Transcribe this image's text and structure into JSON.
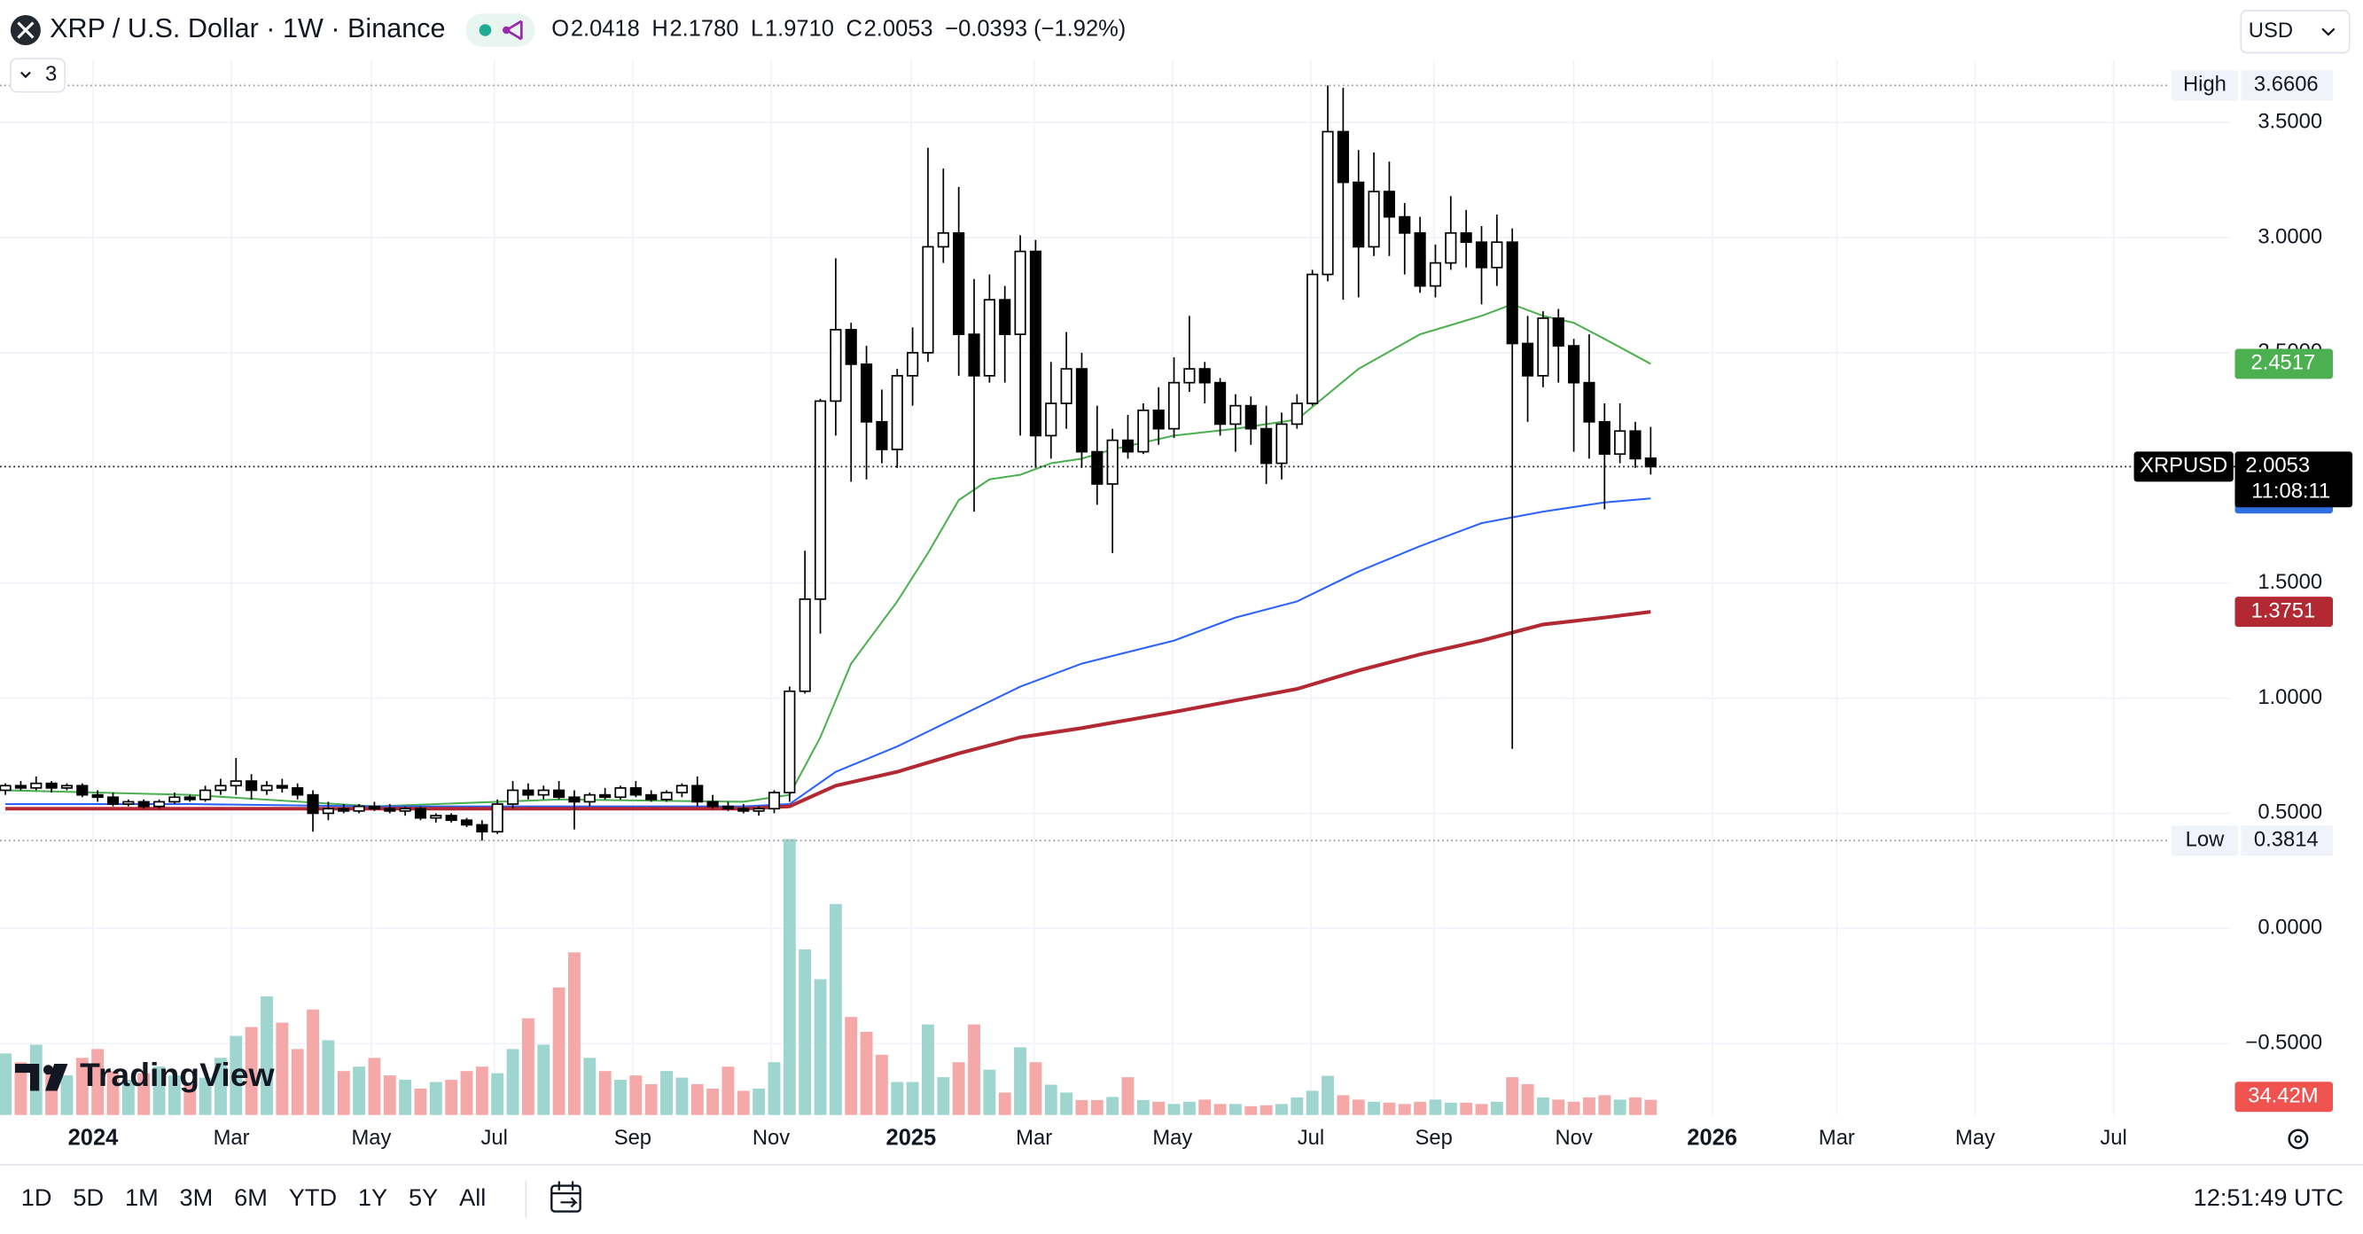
{
  "header": {
    "symbol": "XRP / U.S. Dollar · 1W · Binance",
    "ohlc": [
      {
        "key": "O",
        "value": "2.0418"
      },
      {
        "key": "H",
        "value": "2.1780"
      },
      {
        "key": "L",
        "value": "1.9710"
      },
      {
        "key": "C",
        "value": "2.0053"
      }
    ],
    "change": "−0.0393 (−1.92%)",
    "currency": "USD",
    "indicator_count": 3
  },
  "chart_data": {
    "type": "candlestick",
    "up_color": "#ffffff",
    "down_color": "#000000",
    "volume_up_color": "#9fd5cf",
    "volume_down_color": "#f4a9a8",
    "xlim": [
      -0.35,
      144.7
    ],
    "ylim": [
      -0.81,
      3.77
    ],
    "volume_lim": [
      0,
      2400
    ],
    "grid": true,
    "xticks": [
      {
        "value": 5.7,
        "label": "2024"
      },
      {
        "value": 14.7,
        "label": "Mar"
      },
      {
        "value": 23.8,
        "label": "May"
      },
      {
        "value": 31.8,
        "label": "Jul"
      },
      {
        "value": 40.8,
        "label": "Sep"
      },
      {
        "value": 49.8,
        "label": "Nov"
      },
      {
        "value": 58.9,
        "label": "2025"
      },
      {
        "value": 66.9,
        "label": "Mar"
      },
      {
        "value": 75.9,
        "label": "May"
      },
      {
        "value": 84.9,
        "label": "Jul"
      },
      {
        "value": 92.9,
        "label": "Sep"
      },
      {
        "value": 102,
        "label": "Nov"
      },
      {
        "value": 111,
        "label": "2026"
      },
      {
        "value": 119.1,
        "label": "Mar"
      },
      {
        "value": 128.1,
        "label": "May"
      },
      {
        "value": 137.1,
        "label": "Jul"
      }
    ],
    "yticks": [
      {
        "value": 3.5,
        "label": "3.5000"
      },
      {
        "value": 3,
        "label": "3.0000"
      },
      {
        "value": 2.5,
        "label": "2.5000"
      },
      {
        "value": 1.5,
        "label": "1.5000"
      },
      {
        "value": 1,
        "label": "1.0000"
      },
      {
        "value": 0.5,
        "label": "0.5000"
      },
      {
        "value": 0,
        "label": "0.0000"
      },
      {
        "value": -0.5,
        "label": "−0.5000"
      }
    ],
    "open": [
      0.6,
      0.62,
      0.61,
      0.63,
      0.61,
      0.62,
      0.58,
      0.57,
      0.54,
      0.55,
      0.53,
      0.55,
      0.57,
      0.56,
      0.6,
      0.62,
      0.64,
      0.6,
      0.62,
      0.61,
      0.58,
      0.5,
      0.52,
      0.51,
      0.53,
      0.52,
      0.51,
      0.52,
      0.48,
      0.49,
      0.47,
      0.45,
      0.42,
      0.54,
      0.6,
      0.58,
      0.6,
      0.57,
      0.55,
      0.58,
      0.57,
      0.61,
      0.58,
      0.56,
      0.59,
      0.62,
      0.55,
      0.53,
      0.52,
      0.51,
      0.52,
      0.59,
      1.03,
      1.43,
      2.29,
      2.6,
      2.45,
      2.2,
      2.08,
      2.4,
      2.5,
      2.96,
      3.02,
      2.58,
      2.4,
      2.73,
      2.58,
      2.94,
      2.14,
      2.28,
      2.43,
      2.07,
      1.93,
      2.12,
      2.07,
      2.25,
      2.17,
      2.37,
      2.43,
      2.37,
      2.19,
      2.27,
      2.17,
      2.02,
      2.19,
      2.28,
      2.84,
      3.46,
      3.24,
      2.96,
      3.2,
      3.09,
      3.02,
      2.79,
      2.89,
      3.02,
      2.98,
      2.87,
      2.98,
      2.54,
      2.4,
      2.65,
      2.53,
      2.37,
      2.2,
      2.06,
      2.16,
      2.0418
    ],
    "high": [
      0.63,
      0.64,
      0.66,
      0.64,
      0.63,
      0.63,
      0.6,
      0.59,
      0.56,
      0.56,
      0.56,
      0.59,
      0.58,
      0.62,
      0.65,
      0.74,
      0.67,
      0.64,
      0.65,
      0.63,
      0.6,
      0.55,
      0.54,
      0.54,
      0.55,
      0.54,
      0.53,
      0.53,
      0.5,
      0.5,
      0.48,
      0.47,
      0.56,
      0.64,
      0.63,
      0.62,
      0.64,
      0.6,
      0.59,
      0.61,
      0.62,
      0.64,
      0.6,
      0.6,
      0.63,
      0.66,
      0.58,
      0.55,
      0.54,
      0.53,
      0.6,
      1.05,
      1.64,
      2.3,
      2.91,
      2.63,
      2.53,
      2.34,
      2.43,
      2.61,
      3.39,
      3.3,
      3.22,
      2.82,
      2.84,
      2.79,
      3.01,
      2.99,
      2.46,
      2.59,
      2.5,
      2.27,
      2.17,
      2.23,
      2.28,
      2.35,
      2.48,
      2.66,
      2.46,
      2.39,
      2.32,
      2.31,
      2.27,
      2.24,
      2.32,
      2.86,
      3.6606,
      3.65,
      3.38,
      3.37,
      3.33,
      3.15,
      3.09,
      2.97,
      3.18,
      3.12,
      3.05,
      3.1,
      3.04,
      2.66,
      2.68,
      2.69,
      2.56,
      2.58,
      2.28,
      2.28,
      2.2,
      2.178
    ],
    "low": [
      0.58,
      0.6,
      0.6,
      0.59,
      0.6,
      0.57,
      0.55,
      0.53,
      0.53,
      0.52,
      0.52,
      0.54,
      0.55,
      0.55,
      0.58,
      0.58,
      0.56,
      0.58,
      0.59,
      0.56,
      0.42,
      0.47,
      0.5,
      0.5,
      0.51,
      0.5,
      0.49,
      0.47,
      0.46,
      0.46,
      0.44,
      0.3814,
      0.41,
      0.52,
      0.56,
      0.56,
      0.56,
      0.43,
      0.53,
      0.56,
      0.56,
      0.57,
      0.55,
      0.55,
      0.57,
      0.53,
      0.52,
      0.51,
      0.5,
      0.49,
      0.5,
      0.55,
      1.02,
      1.28,
      2.14,
      1.94,
      1.95,
      2.02,
      2.0,
      2.27,
      2.46,
      2.89,
      2.4,
      1.81,
      2.37,
      2.37,
      2.14,
      2.0,
      2.04,
      2.17,
      2.0,
      1.84,
      1.63,
      2.04,
      2.06,
      2.1,
      2.13,
      2.33,
      2.28,
      2.14,
      2.07,
      2.1,
      1.93,
      1.95,
      2.17,
      2.27,
      2.81,
      2.73,
      2.74,
      2.92,
      2.92,
      2.84,
      2.76,
      2.74,
      2.86,
      2.87,
      2.71,
      2.79,
      0.78,
      2.2,
      2.35,
      2.37,
      2.07,
      2.04,
      1.82,
      2.02,
      2.0,
      1.971
    ],
    "close": [
      0.62,
      0.61,
      0.63,
      0.61,
      0.62,
      0.58,
      0.57,
      0.54,
      0.55,
      0.53,
      0.55,
      0.57,
      0.56,
      0.6,
      0.62,
      0.64,
      0.6,
      0.62,
      0.61,
      0.58,
      0.5,
      0.52,
      0.51,
      0.53,
      0.52,
      0.51,
      0.52,
      0.48,
      0.49,
      0.47,
      0.45,
      0.42,
      0.54,
      0.6,
      0.58,
      0.6,
      0.57,
      0.55,
      0.58,
      0.57,
      0.61,
      0.58,
      0.56,
      0.59,
      0.62,
      0.55,
      0.53,
      0.52,
      0.51,
      0.52,
      0.59,
      1.03,
      1.43,
      2.29,
      2.6,
      2.45,
      2.2,
      2.08,
      2.4,
      2.5,
      2.96,
      3.02,
      2.58,
      2.4,
      2.73,
      2.58,
      2.94,
      2.14,
      2.28,
      2.43,
      2.07,
      1.93,
      2.12,
      2.07,
      2.25,
      2.17,
      2.37,
      2.43,
      2.37,
      2.19,
      2.27,
      2.17,
      2.02,
      2.19,
      2.28,
      2.84,
      3.46,
      3.24,
      2.96,
      3.2,
      3.09,
      3.02,
      2.79,
      2.89,
      3.02,
      2.98,
      2.87,
      2.98,
      2.54,
      2.4,
      2.65,
      2.53,
      2.37,
      2.2,
      2.06,
      2.16,
      2.04,
      2.0053
    ],
    "volume": [
      140,
      120,
      160,
      110,
      90,
      130,
      150,
      100,
      80,
      95,
      110,
      90,
      70,
      85,
      130,
      180,
      200,
      270,
      210,
      150,
      240,
      170,
      100,
      110,
      130,
      90,
      80,
      60,
      75,
      80,
      100,
      110,
      95,
      150,
      220,
      160,
      290,
      370,
      130,
      100,
      80,
      90,
      70,
      100,
      85,
      70,
      60,
      110,
      55,
      60,
      120,
      628,
      377,
      309,
      480,
      223,
      189,
      137,
      75,
      75,
      206,
      86,
      120,
      206,
      103,
      51,
      154,
      120,
      69,
      51,
      34,
      34,
      41,
      86,
      34,
      30,
      25,
      30,
      35,
      25,
      25,
      20,
      22,
      25,
      40,
      55,
      89,
      45,
      35,
      30,
      28,
      25,
      30,
      35,
      28,
      28,
      25,
      30,
      86,
      70,
      40,
      35,
      30,
      40,
      45,
      35,
      40,
      34.42
    ],
    "volume_last_label": "34.42M",
    "series": [
      {
        "color": "#4caf50",
        "width": 1.2,
        "x": [
          0,
          12,
          24,
          36,
          48,
          51,
          53,
          55,
          58,
          60,
          62,
          64,
          66,
          68,
          70,
          72,
          76,
          80,
          84,
          86,
          88,
          92,
          96,
          98,
          100,
          102,
          104,
          107
        ],
        "values": [
          0.6,
          0.58,
          0.53,
          0.56,
          0.55,
          0.58,
          0.83,
          1.15,
          1.42,
          1.63,
          1.86,
          1.95,
          1.97,
          2.02,
          2.04,
          2.08,
          2.14,
          2.17,
          2.21,
          2.32,
          2.43,
          2.58,
          2.66,
          2.71,
          2.66,
          2.63,
          2.56,
          2.4517
        ],
        "label_color": "#4caf50"
      },
      {
        "color": "#2962ff",
        "width": 1.2,
        "x": [
          0,
          12,
          24,
          36,
          48,
          51,
          54,
          58,
          62,
          66,
          70,
          76,
          80,
          84,
          88,
          92,
          96,
          100,
          104,
          107
        ],
        "values": [
          0.54,
          0.54,
          0.53,
          0.53,
          0.53,
          0.54,
          0.68,
          0.79,
          0.92,
          1.05,
          1.15,
          1.25,
          1.35,
          1.42,
          1.55,
          1.66,
          1.76,
          1.81,
          1.85,
          1.8672
        ],
        "label_color": "#2f6fe0"
      },
      {
        "color": "#b22833",
        "width": 2.4,
        "x": [
          0,
          12,
          24,
          36,
          48,
          51,
          54,
          58,
          62,
          66,
          70,
          76,
          80,
          84,
          88,
          92,
          96,
          100,
          104,
          107
        ],
        "values": [
          0.52,
          0.52,
          0.52,
          0.52,
          0.52,
          0.53,
          0.62,
          0.68,
          0.76,
          0.83,
          0.87,
          0.94,
          0.99,
          1.04,
          1.12,
          1.19,
          1.25,
          1.32,
          1.35,
          1.3751
        ],
        "label_color": "#b22833"
      }
    ],
    "high_marker": {
      "label": "High",
      "value": 3.6606
    },
    "low_marker": {
      "label": "Low",
      "value": 0.3814
    },
    "symbol_label": "XRPUSD",
    "countdown": "11:08:11"
  },
  "logo": "TradingView",
  "footer": {
    "ranges": [
      "1D",
      "5D",
      "1M",
      "3M",
      "6M",
      "YTD",
      "1Y",
      "5Y",
      "All"
    ],
    "time": "12:51:49 UTC"
  }
}
